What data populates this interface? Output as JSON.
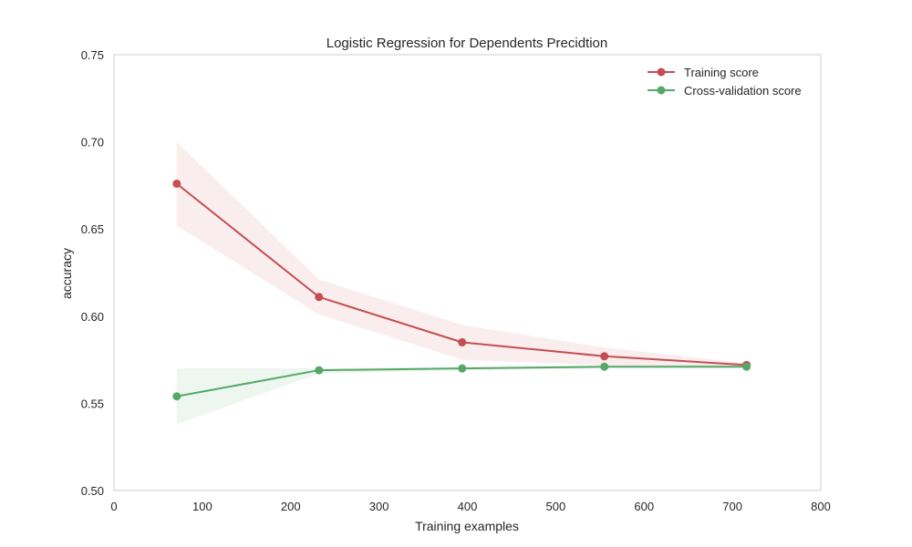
{
  "chart_data": {
    "type": "line",
    "title": "Logistic Regression for Dependents Precidtion",
    "xlabel": "Training examples",
    "ylabel": "accuracy",
    "xlim": [
      0,
      800
    ],
    "ylim": [
      0.5,
      0.75
    ],
    "xticks": [
      0,
      100,
      200,
      300,
      400,
      500,
      600,
      700,
      800
    ],
    "yticks": [
      0.5,
      0.55,
      0.6,
      0.65,
      0.7,
      0.75
    ],
    "ytick_labels": [
      "0.50",
      "0.55",
      "0.60",
      "0.65",
      "0.70",
      "0.75"
    ],
    "grid": false,
    "legend_position": "top-right",
    "x": [
      71,
      232,
      394,
      555,
      716
    ],
    "series": [
      {
        "name": "Training score",
        "color": "#c44e52",
        "values": [
          0.676,
          0.611,
          0.585,
          0.577,
          0.572
        ],
        "band_upper": [
          0.7,
          0.621,
          0.595,
          0.582,
          0.573
        ],
        "band_lower": [
          0.652,
          0.601,
          0.575,
          0.572,
          0.571
        ]
      },
      {
        "name": "Cross-validation score",
        "color": "#55a868",
        "values": [
          0.554,
          0.569,
          0.57,
          0.571,
          0.571
        ],
        "band_upper": [
          0.57,
          0.57,
          0.571,
          0.572,
          0.572
        ],
        "band_lower": [
          0.538,
          0.567,
          0.569,
          0.57,
          0.57
        ]
      }
    ]
  }
}
